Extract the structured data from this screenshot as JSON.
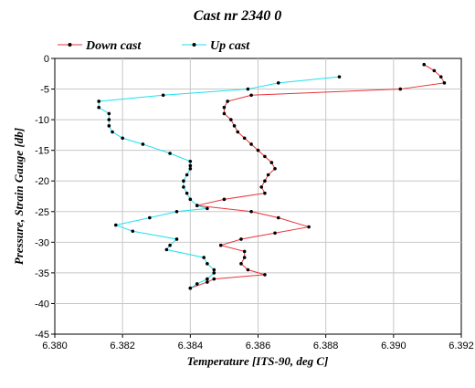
{
  "chart_data": {
    "type": "line",
    "title": "Cast nr 2340 0",
    "xlabel": "Temperature [ITS-90, deg C]",
    "ylabel": "Pressure, Strain Gauge [db]",
    "xlim": [
      6.38,
      6.392
    ],
    "ylim": [
      -45,
      0
    ],
    "x_ticks": [
      "6.380",
      "6.382",
      "6.384",
      "6.386",
      "6.388",
      "6.390",
      "6.392"
    ],
    "y_ticks": [
      "0",
      "-5",
      "-10",
      "-15",
      "-20",
      "-25",
      "-30",
      "-35",
      "-40",
      "-45"
    ],
    "grid": true,
    "legend_position": "top-left",
    "series": [
      {
        "name": "Down cast",
        "color": "#e8333a",
        "marker": "dot",
        "points": [
          [
            6.3909,
            -1.0
          ],
          [
            6.3912,
            -2.0
          ],
          [
            6.3914,
            -3.0
          ],
          [
            6.3915,
            -4.0
          ],
          [
            6.3902,
            -5.0
          ],
          [
            6.3858,
            -6.0
          ],
          [
            6.3851,
            -7.0
          ],
          [
            6.385,
            -8.0
          ],
          [
            6.385,
            -9.0
          ],
          [
            6.3852,
            -10.0
          ],
          [
            6.3853,
            -11.0
          ],
          [
            6.3854,
            -12.0
          ],
          [
            6.3856,
            -13.0
          ],
          [
            6.3858,
            -14.0
          ],
          [
            6.386,
            -15.0
          ],
          [
            6.3862,
            -16.0
          ],
          [
            6.3864,
            -17.0
          ],
          [
            6.3865,
            -18.0
          ],
          [
            6.3863,
            -19.0
          ],
          [
            6.3862,
            -20.0
          ],
          [
            6.3861,
            -21.0
          ],
          [
            6.3862,
            -22.0
          ],
          [
            6.385,
            -23.0
          ],
          [
            6.3842,
            -24.0
          ],
          [
            6.3858,
            -25.0
          ],
          [
            6.3866,
            -26.0
          ],
          [
            6.3875,
            -27.5
          ],
          [
            6.3865,
            -28.5
          ],
          [
            6.3855,
            -29.5
          ],
          [
            6.3849,
            -30.5
          ],
          [
            6.3856,
            -31.5
          ],
          [
            6.3856,
            -32.5
          ],
          [
            6.3855,
            -33.5
          ],
          [
            6.3857,
            -34.5
          ],
          [
            6.3862,
            -35.3
          ],
          [
            6.3847,
            -36.0
          ],
          [
            6.3845,
            -36.5
          ],
          [
            6.384,
            -37.5
          ]
        ]
      },
      {
        "name": "Up cast",
        "color": "#1de1ee",
        "marker": "dot",
        "points": [
          [
            6.3884,
            -3.0
          ],
          [
            6.3866,
            -4.0
          ],
          [
            6.3857,
            -5.0
          ],
          [
            6.3832,
            -6.0
          ],
          [
            6.3813,
            -7.0
          ],
          [
            6.3813,
            -8.0
          ],
          [
            6.3816,
            -9.0
          ],
          [
            6.3816,
            -10.0
          ],
          [
            6.3816,
            -11.0
          ],
          [
            6.3817,
            -12.0
          ],
          [
            6.382,
            -13.0
          ],
          [
            6.3826,
            -14.0
          ],
          [
            6.3834,
            -15.5
          ],
          [
            6.384,
            -16.8
          ],
          [
            6.384,
            -17.5
          ],
          [
            6.384,
            -18.0
          ],
          [
            6.3839,
            -19.0
          ],
          [
            6.3838,
            -20.0
          ],
          [
            6.3838,
            -21.0
          ],
          [
            6.3839,
            -22.0
          ],
          [
            6.384,
            -23.0
          ],
          [
            6.3842,
            -24.0
          ],
          [
            6.3845,
            -24.5
          ],
          [
            6.3836,
            -25.0
          ],
          [
            6.3828,
            -26.0
          ],
          [
            6.3818,
            -27.2
          ],
          [
            6.3823,
            -28.2
          ],
          [
            6.3836,
            -29.5
          ],
          [
            6.3834,
            -30.5
          ],
          [
            6.3833,
            -31.2
          ],
          [
            6.3844,
            -32.5
          ],
          [
            6.3845,
            -33.5
          ],
          [
            6.3847,
            -34.5
          ],
          [
            6.3847,
            -35.0
          ],
          [
            6.3845,
            -36.0
          ],
          [
            6.3842,
            -36.8
          ],
          [
            6.384,
            -37.5
          ]
        ]
      }
    ]
  }
}
